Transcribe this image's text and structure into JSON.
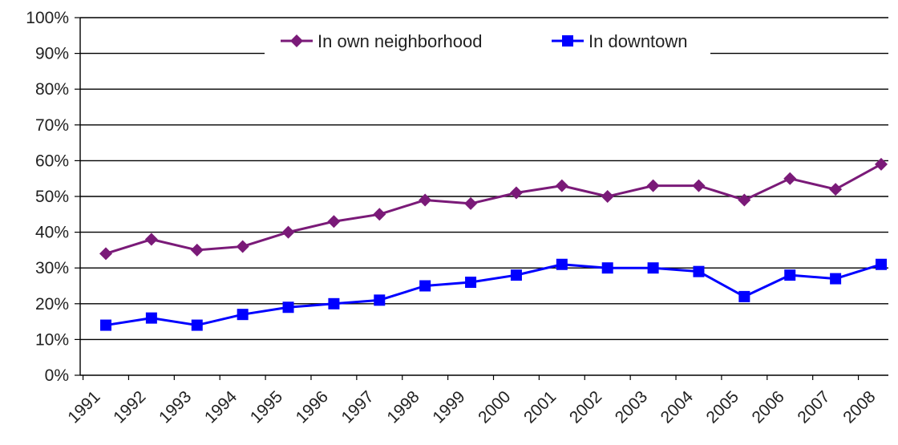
{
  "chart_data": {
    "type": "line",
    "title": "",
    "xlabel": "",
    "ylabel": "",
    "categories": [
      "1991",
      "1992",
      "1993",
      "1994",
      "1995",
      "1996",
      "1997",
      "1998",
      "1999",
      "2000",
      "2001",
      "2002",
      "2003",
      "2004",
      "2005",
      "2006",
      "2007",
      "2008"
    ],
    "y_tick_labels": [
      "0%",
      "10%",
      "20%",
      "30%",
      "40%",
      "50%",
      "60%",
      "70%",
      "80%",
      "90%",
      "100%"
    ],
    "ylim": [
      0,
      100
    ],
    "grid": true,
    "legend_position": "top",
    "series": [
      {
        "name": "In own neighborhood",
        "color": "#7a1a78",
        "marker": "diamond",
        "values": [
          34,
          38,
          35,
          36,
          40,
          43,
          45,
          49,
          48,
          51,
          53,
          50,
          53,
          53,
          49,
          55,
          52,
          59
        ]
      },
      {
        "name": "In downtown",
        "color": "#0000ff",
        "marker": "square",
        "values": [
          14,
          16,
          14,
          17,
          19,
          20,
          21,
          25,
          26,
          28,
          31,
          30,
          30,
          29,
          22,
          28,
          27,
          31
        ]
      }
    ]
  }
}
